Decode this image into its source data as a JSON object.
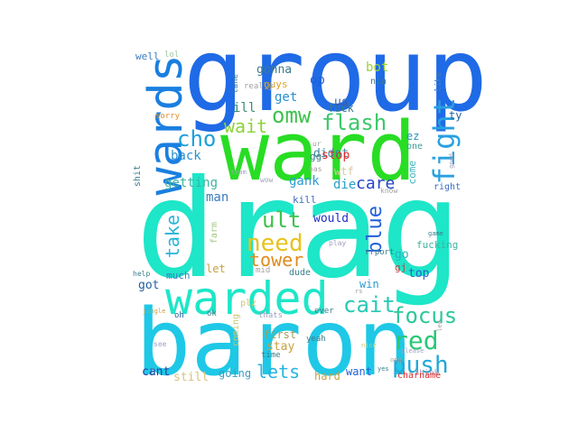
{
  "words": [
    {
      "text": "drag",
      "color": "#1ee6c8"
    },
    {
      "text": "group",
      "color": "#1f6ae6"
    },
    {
      "text": "ward",
      "color": "#28dd24"
    },
    {
      "text": "baron",
      "color": "#1ec8e6"
    },
    {
      "text": "warded",
      "color": "#1ee6c8"
    },
    {
      "text": "wards",
      "color": "#1a7fe0"
    },
    {
      "text": "fight",
      "color": "#28a0e0"
    },
    {
      "text": "omw",
      "color": "#3ec24e"
    },
    {
      "text": "flash",
      "color": "#3cc86a"
    },
    {
      "text": "cho",
      "color": "#1ea0d8"
    },
    {
      "text": "wait",
      "color": "#8cd23a"
    },
    {
      "text": "ult",
      "color": "#3ec24e"
    },
    {
      "text": "need",
      "color": "#e8c21e"
    },
    {
      "text": "tower",
      "color": "#e08a1e"
    },
    {
      "text": "take",
      "color": "#28b4d8"
    },
    {
      "text": "blue",
      "color": "#2060d8"
    },
    {
      "text": "cait",
      "color": "#28c8b4"
    },
    {
      "text": "focus",
      "color": "#2cc89a"
    },
    {
      "text": "red",
      "color": "#28c878"
    },
    {
      "text": "push",
      "color": "#20a8d8"
    },
    {
      "text": "lets",
      "color": "#28b4e0"
    },
    {
      "text": "care",
      "color": "#2444c8"
    },
    {
      "text": "back",
      "color": "#2890d0"
    },
    {
      "text": "getting",
      "color": "#3cb4a0"
    },
    {
      "text": "gank",
      "color": "#2c9ad0"
    },
    {
      "text": "die",
      "color": "#28a0c8"
    },
    {
      "text": "man",
      "color": "#3c7cc0"
    },
    {
      "text": "kill",
      "color": "#3c6cc0"
    },
    {
      "text": "would",
      "color": "#1e2ec8"
    },
    {
      "text": "fuck",
      "color": "#3c7c8c"
    },
    {
      "text": "gonna",
      "color": "#3c7c8c"
    },
    {
      "text": "bot",
      "color": "#9ad23a"
    },
    {
      "text": "op",
      "color": "#2060d8"
    },
    {
      "text": "us",
      "color": "#3c5ca0"
    },
    {
      "text": "nia",
      "color": "#3c7c8c"
    },
    {
      "text": "ill",
      "color": "#3c8c6c"
    },
    {
      "text": "get",
      "color": "#2890d0"
    },
    {
      "text": "didnt",
      "color": "#3c8c9c"
    },
    {
      "text": "stop",
      "color": "#e0282c"
    },
    {
      "text": "wtf",
      "color": "#d8c8a0"
    },
    {
      "text": "gg",
      "color": "#3c7c8c"
    },
    {
      "text": "guys",
      "color": "#e0a01e"
    },
    {
      "text": "ty",
      "color": "#2860a0"
    },
    {
      "text": "ez",
      "color": "#2890c0"
    },
    {
      "text": "one",
      "color": "#3c9c9c"
    },
    {
      "text": "come",
      "color": "#3cb4c0"
    },
    {
      "text": "go",
      "color": "#28b4c0"
    },
    {
      "text": "fucking",
      "color": "#3cb4a0"
    },
    {
      "text": "gj",
      "color": "#c83c3c"
    },
    {
      "text": "top",
      "color": "#2860d0"
    },
    {
      "text": "win",
      "color": "#2c9ad0"
    },
    {
      "text": "let",
      "color": "#c8a040"
    },
    {
      "text": "got",
      "color": "#2060a0"
    },
    {
      "text": "much",
      "color": "#3c7cc0"
    },
    {
      "text": "still",
      "color": "#d8c080"
    },
    {
      "text": "cant",
      "color": "#2040a0"
    },
    {
      "text": "going",
      "color": "#3c9cc0"
    },
    {
      "text": "coming",
      "color": "#c8c870"
    },
    {
      "text": "stay",
      "color": "#c8a040"
    },
    {
      "text": "first",
      "color": "#a0a060"
    },
    {
      "text": "hard",
      "color": "#c8a040"
    },
    {
      "text": "want",
      "color": "#2060d8"
    },
    {
      "text": "well",
      "color": "#3c7cc0"
    },
    {
      "text": "lol",
      "color": "#a0c8a0"
    },
    {
      "text": "lane",
      "color": "#3c7c8c"
    },
    {
      "text": "really",
      "color": "#a0a0a0"
    },
    {
      "text": "like",
      "color": "#3c7cc0"
    },
    {
      "text": "sorry",
      "color": "#e09030"
    },
    {
      "text": "shit",
      "color": "#3c7c8c"
    },
    {
      "text": "farm",
      "color": "#a0c880"
    },
    {
      "text": "right",
      "color": "#3c6cc0"
    },
    {
      "text": "plz",
      "color": "#c8c870"
    },
    {
      "text": "dude",
      "color": "#3c7c8c"
    },
    {
      "text": "mid",
      "color": "#a0a0a0"
    },
    {
      "text": "ok",
      "color": "#3c7c8c"
    },
    {
      "text": "oh",
      "color": "#2060a0"
    },
    {
      "text": "yeah",
      "color": "#3c7c8c"
    },
    {
      "text": "ever",
      "color": "#3c7c8c"
    },
    {
      "text": "thats",
      "color": "#a0a0c0"
    },
    {
      "text": "think",
      "color": "#a0a0c0"
    },
    {
      "text": "charname",
      "color": "#e02828"
    },
    {
      "text": "help",
      "color": "#3c7c8c"
    },
    {
      "text": "play",
      "color": "#a0a0c0"
    },
    {
      "text": "know",
      "color": "#a0a0a0"
    },
    {
      "text": "game",
      "color": "#3c7c8c"
    },
    {
      "text": "wow",
      "color": "#a0a0c0"
    },
    {
      "text": "team",
      "color": "#a0a0c0"
    },
    {
      "text": "jungle",
      "color": "#c8a040"
    },
    {
      "text": "see",
      "color": "#a0a0c0"
    },
    {
      "text": "time",
      "color": "#3c7c8c"
    },
    {
      "text": "yes",
      "color": "#3c7c8c"
    },
    {
      "text": "nice",
      "color": "#c8c870"
    },
    {
      "text": "ong",
      "color": "#a0a0a0"
    },
    {
      "text": "please",
      "color": "#a0a0c0"
    },
    {
      "text": "ur",
      "color": "#a0a0a0"
    },
    {
      "text": "has",
      "color": "#a0a0a0"
    },
    {
      "text": "rrport",
      "color": "#3c7c8c"
    },
    {
      "text": "rs",
      "color": "#a0a0a0"
    },
    {
      "text": "good",
      "color": "#a0a0c0"
    },
    {
      "text": "led",
      "color": "#a0a0a0"
    }
  ]
}
